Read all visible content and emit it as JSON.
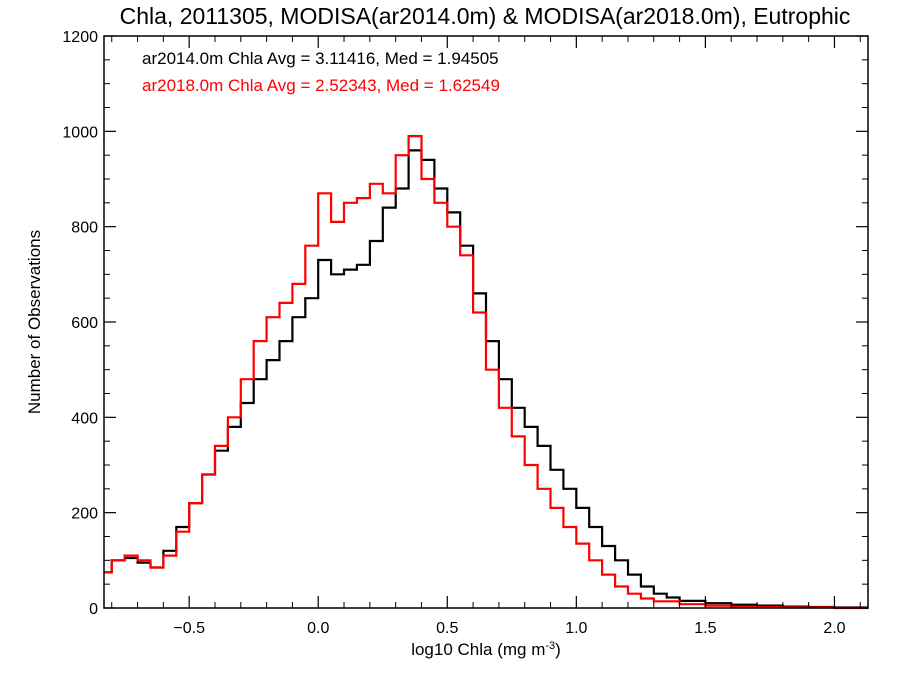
{
  "chart_data": {
    "type": "line",
    "title": "Chla, 2011305, MODISA(ar2014.0m) & MODISA(ar2018.0m), Eutrophic",
    "xlabel": "log10 Chla (mg m",
    "xlabel_sup": "-3",
    "xlabel_close": ")",
    "ylabel": "Number of Observations",
    "xlim": [
      -0.83,
      2.13
    ],
    "ylim": [
      0,
      1200
    ],
    "x_ticks": [
      -0.5,
      0.0,
      0.5,
      1.0,
      1.5,
      2.0
    ],
    "x_tick_labels": [
      "−0.5",
      "0.0",
      "0.5",
      "1.0",
      "1.5",
      "2.0"
    ],
    "y_ticks": [
      0,
      200,
      400,
      600,
      800,
      1000,
      1200
    ],
    "y_tick_labels": [
      "0",
      "200",
      "400",
      "600",
      "800",
      "1000",
      "1200"
    ],
    "legend_position": "top-left",
    "stats": [
      {
        "text": "ar2014.0m Chla Avg = 3.11416, Med = 1.94505",
        "color": "#000000"
      },
      {
        "text": "ar2018.0m Chla Avg = 2.52343, Med = 1.62549",
        "color": "#ff0000"
      }
    ],
    "series": [
      {
        "color": "#000000",
        "points": [
          [
            -0.83,
            75
          ],
          [
            -0.8,
            100
          ],
          [
            -0.75,
            105
          ],
          [
            -0.7,
            95
          ],
          [
            -0.65,
            85
          ],
          [
            -0.6,
            120
          ],
          [
            -0.55,
            170
          ],
          [
            -0.5,
            220
          ],
          [
            -0.45,
            280
          ],
          [
            -0.4,
            330
          ],
          [
            -0.35,
            380
          ],
          [
            -0.3,
            430
          ],
          [
            -0.25,
            480
          ],
          [
            -0.2,
            520
          ],
          [
            -0.15,
            560
          ],
          [
            -0.1,
            610
          ],
          [
            -0.05,
            650
          ],
          [
            0.0,
            730
          ],
          [
            0.05,
            700
          ],
          [
            0.1,
            710
          ],
          [
            0.15,
            720
          ],
          [
            0.2,
            770
          ],
          [
            0.25,
            840
          ],
          [
            0.3,
            880
          ],
          [
            0.35,
            960
          ],
          [
            0.4,
            940
          ],
          [
            0.45,
            880
          ],
          [
            0.5,
            830
          ],
          [
            0.55,
            760
          ],
          [
            0.6,
            660
          ],
          [
            0.65,
            560
          ],
          [
            0.7,
            480
          ],
          [
            0.75,
            420
          ],
          [
            0.8,
            380
          ],
          [
            0.85,
            340
          ],
          [
            0.9,
            290
          ],
          [
            0.95,
            250
          ],
          [
            1.0,
            210
          ],
          [
            1.05,
            170
          ],
          [
            1.1,
            130
          ],
          [
            1.15,
            100
          ],
          [
            1.2,
            70
          ],
          [
            1.25,
            45
          ],
          [
            1.3,
            30
          ],
          [
            1.35,
            22
          ],
          [
            1.4,
            15
          ],
          [
            1.5,
            10
          ],
          [
            1.6,
            7
          ],
          [
            1.7,
            5
          ],
          [
            1.8,
            3
          ],
          [
            1.9,
            2
          ],
          [
            2.0,
            1
          ],
          [
            2.13,
            1
          ]
        ]
      },
      {
        "color": "#ff0000",
        "points": [
          [
            -0.83,
            75
          ],
          [
            -0.8,
            100
          ],
          [
            -0.75,
            110
          ],
          [
            -0.7,
            100
          ],
          [
            -0.65,
            85
          ],
          [
            -0.6,
            110
          ],
          [
            -0.55,
            160
          ],
          [
            -0.5,
            220
          ],
          [
            -0.45,
            280
          ],
          [
            -0.4,
            340
          ],
          [
            -0.35,
            400
          ],
          [
            -0.3,
            480
          ],
          [
            -0.25,
            560
          ],
          [
            -0.2,
            610
          ],
          [
            -0.15,
            640
          ],
          [
            -0.1,
            680
          ],
          [
            -0.05,
            760
          ],
          [
            0.0,
            870
          ],
          [
            0.05,
            810
          ],
          [
            0.1,
            850
          ],
          [
            0.15,
            860
          ],
          [
            0.2,
            890
          ],
          [
            0.25,
            870
          ],
          [
            0.3,
            950
          ],
          [
            0.35,
            990
          ],
          [
            0.4,
            900
          ],
          [
            0.45,
            850
          ],
          [
            0.5,
            800
          ],
          [
            0.55,
            740
          ],
          [
            0.6,
            620
          ],
          [
            0.65,
            500
          ],
          [
            0.7,
            420
          ],
          [
            0.75,
            360
          ],
          [
            0.8,
            300
          ],
          [
            0.85,
            250
          ],
          [
            0.9,
            210
          ],
          [
            0.95,
            170
          ],
          [
            1.0,
            135
          ],
          [
            1.05,
            100
          ],
          [
            1.1,
            70
          ],
          [
            1.15,
            45
          ],
          [
            1.2,
            30
          ],
          [
            1.25,
            20
          ],
          [
            1.3,
            14
          ],
          [
            1.4,
            8
          ],
          [
            1.5,
            5
          ],
          [
            1.6,
            3
          ],
          [
            1.7,
            2
          ],
          [
            1.8,
            1
          ],
          [
            2.0,
            0
          ],
          [
            2.13,
            0
          ]
        ]
      }
    ]
  }
}
